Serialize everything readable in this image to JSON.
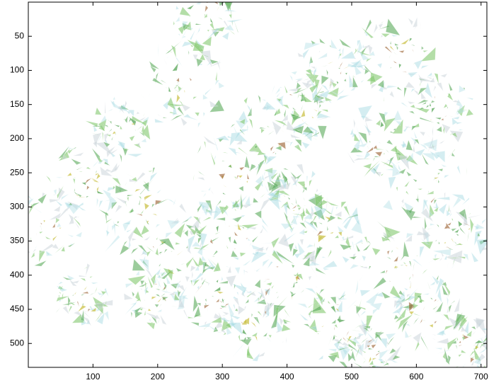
{
  "chart_data": {
    "type": "image",
    "xlim": [
      0,
      709
    ],
    "xticks": [
      100,
      200,
      300,
      400,
      500,
      600,
      700
    ],
    "ylim": [
      0,
      535
    ],
    "yticks": [
      50,
      100,
      150,
      200,
      250,
      300,
      350,
      400,
      450,
      500
    ],
    "y_reversed": true
  }
}
